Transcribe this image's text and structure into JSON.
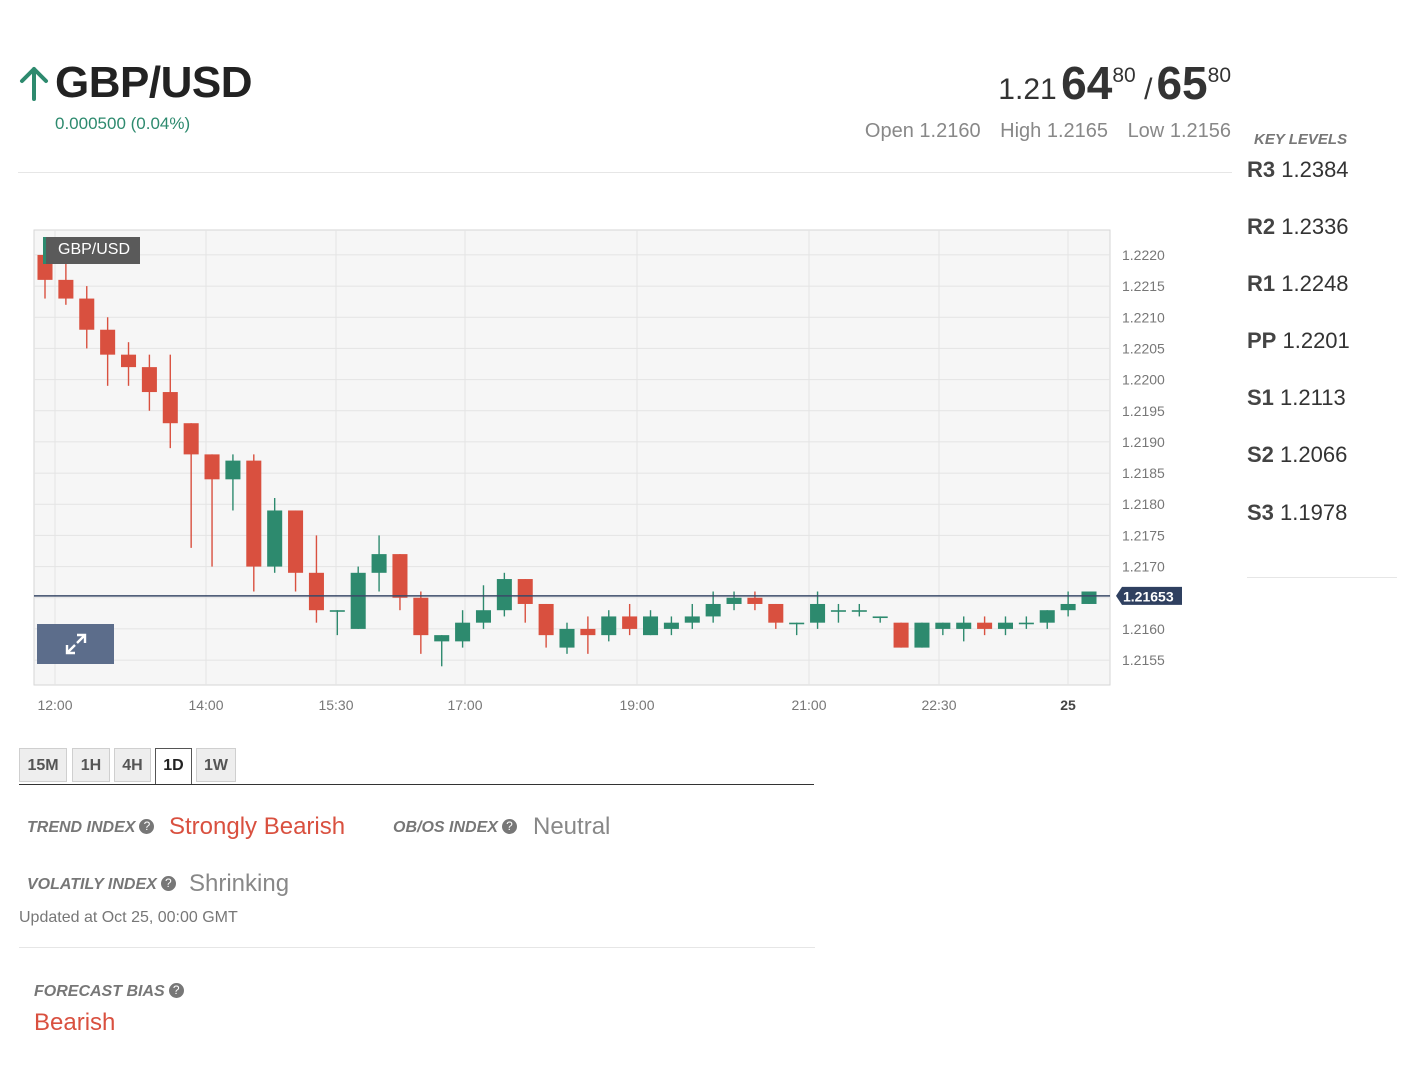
{
  "header": {
    "symbol": "GBP/USD",
    "direction_icon": "arrow-up-icon",
    "change": "0.000500 (0.04%)",
    "bid": {
      "prefix": "1.21",
      "pips": "64",
      "fraction": "80"
    },
    "separator": "/",
    "ask": {
      "pips": "65",
      "fraction": "80"
    },
    "open_label": "Open",
    "open": "1.2160",
    "high_label": "High",
    "high": "1.2165",
    "low_label": "Low",
    "low": "1.2156"
  },
  "key_levels": {
    "title": "KEY LEVELS",
    "levels": [
      {
        "label": "R3",
        "value": "1.2384"
      },
      {
        "label": "R2",
        "value": "1.2336"
      },
      {
        "label": "R1",
        "value": "1.2248"
      },
      {
        "label": "PP",
        "value": "1.2201"
      },
      {
        "label": "S1",
        "value": "1.2113"
      },
      {
        "label": "S2",
        "value": "1.2066"
      },
      {
        "label": "S3",
        "value": "1.1978"
      }
    ]
  },
  "chart_label": "GBP/USD",
  "expand_icon": "expand-arrows-icon",
  "chart_data": {
    "type": "candlestick",
    "ylim": [
      1.2151,
      1.2224
    ],
    "y_ticks": [
      "1.2155",
      "1.2160",
      "1.2165",
      "1.2170",
      "1.2175",
      "1.2180",
      "1.2185",
      "1.2190",
      "1.2195",
      "1.2200",
      "1.2205",
      "1.2210",
      "1.2215",
      "1.2220"
    ],
    "x_ticks": [
      "12:00",
      "14:00",
      "15:30",
      "17:00",
      "19:00",
      "21:00",
      "22:30",
      "25"
    ],
    "current_price": 1.21653,
    "current_price_label": "1.21653",
    "colors": {
      "up": "#2d8a6e",
      "down": "#d9503f",
      "line": "#3a4a68"
    },
    "candles": [
      [
        1.222,
        1.2222,
        1.2213,
        1.2216
      ],
      [
        1.2216,
        1.222,
        1.2212,
        1.2213
      ],
      [
        1.2213,
        1.2215,
        1.2205,
        1.2208
      ],
      [
        1.2208,
        1.221,
        1.2199,
        1.2204
      ],
      [
        1.2204,
        1.2206,
        1.2199,
        1.2202
      ],
      [
        1.2202,
        1.2204,
        1.2195,
        1.2198
      ],
      [
        1.2198,
        1.2204,
        1.2189,
        1.2193
      ],
      [
        1.2193,
        1.2193,
        1.2173,
        1.2188
      ],
      [
        1.2188,
        1.2188,
        1.217,
        1.2184
      ],
      [
        1.2184,
        1.2188,
        1.2179,
        1.2187
      ],
      [
        1.2187,
        1.2188,
        1.2166,
        1.217
      ],
      [
        1.217,
        1.2181,
        1.2169,
        1.2179
      ],
      [
        1.2179,
        1.2179,
        1.2166,
        1.2169
      ],
      [
        1.2169,
        1.2175,
        1.2161,
        1.2163
      ],
      [
        1.2163,
        1.2163,
        1.2159,
        1.2163
      ],
      [
        1.216,
        1.217,
        1.216,
        1.2169
      ],
      [
        1.2169,
        1.2175,
        1.2166,
        1.2172
      ],
      [
        1.2172,
        1.2172,
        1.2163,
        1.2165
      ],
      [
        1.2165,
        1.2166,
        1.2156,
        1.2159
      ],
      [
        1.2158,
        1.2159,
        1.2154,
        1.2159
      ],
      [
        1.2158,
        1.2163,
        1.2157,
        1.2161
      ],
      [
        1.2161,
        1.2167,
        1.216,
        1.2163
      ],
      [
        1.2163,
        1.2169,
        1.2162,
        1.2168
      ],
      [
        1.2168,
        1.2168,
        1.2161,
        1.2164
      ],
      [
        1.2164,
        1.2164,
        1.2157,
        1.2159
      ],
      [
        1.2157,
        1.2161,
        1.2156,
        1.216
      ],
      [
        1.216,
        1.2162,
        1.2156,
        1.2159
      ],
      [
        1.2159,
        1.2163,
        1.2158,
        1.2162
      ],
      [
        1.2162,
        1.2164,
        1.2159,
        1.216
      ],
      [
        1.2159,
        1.2163,
        1.2159,
        1.2162
      ],
      [
        1.216,
        1.2162,
        1.2159,
        1.2161
      ],
      [
        1.2161,
        1.2164,
        1.216,
        1.2162
      ],
      [
        1.2162,
        1.2166,
        1.2161,
        1.2164
      ],
      [
        1.2164,
        1.2166,
        1.2163,
        1.2165
      ],
      [
        1.2165,
        1.2166,
        1.2163,
        1.2164
      ],
      [
        1.2164,
        1.2164,
        1.216,
        1.2161
      ],
      [
        1.2161,
        1.2161,
        1.2159,
        1.2161
      ],
      [
        1.2161,
        1.2166,
        1.216,
        1.2164
      ],
      [
        1.2163,
        1.2164,
        1.2161,
        1.2163
      ],
      [
        1.2163,
        1.2164,
        1.2162,
        1.2163
      ],
      [
        1.2162,
        1.2162,
        1.2161,
        1.2162
      ],
      [
        1.2161,
        1.2161,
        1.2157,
        1.2157
      ],
      [
        1.2157,
        1.2161,
        1.2157,
        1.2161
      ],
      [
        1.216,
        1.2161,
        1.2159,
        1.2161
      ],
      [
        1.216,
        1.2162,
        1.2158,
        1.2161
      ],
      [
        1.2161,
        1.2162,
        1.2159,
        1.216
      ],
      [
        1.216,
        1.2162,
        1.2159,
        1.2161
      ],
      [
        1.2161,
        1.2162,
        1.216,
        1.2161
      ],
      [
        1.2161,
        1.2163,
        1.216,
        1.2163
      ],
      [
        1.2163,
        1.2166,
        1.2162,
        1.2164
      ],
      [
        1.2164,
        1.2166,
        1.2164,
        1.2166
      ]
    ]
  },
  "periods": [
    "15M",
    "1H",
    "4H",
    "1D",
    "1W"
  ],
  "active_period": "1D",
  "indices": {
    "trend_label": "TREND INDEX",
    "trend_value": "Strongly Bearish",
    "obos_label": "OB/OS INDEX",
    "obos_value": "Neutral",
    "volatility_label": "VOLATILY INDEX",
    "volatility_value": "Shrinking",
    "help_icon": "question-circle-icon",
    "updated": "Updated at Oct 25, 00:00 GMT"
  },
  "forecast": {
    "label": "FORECAST BIAS",
    "value": "Bearish"
  },
  "colors": {
    "bearish": "#d9503f",
    "bullish": "#2d8a6e",
    "neutral": "#888888"
  }
}
